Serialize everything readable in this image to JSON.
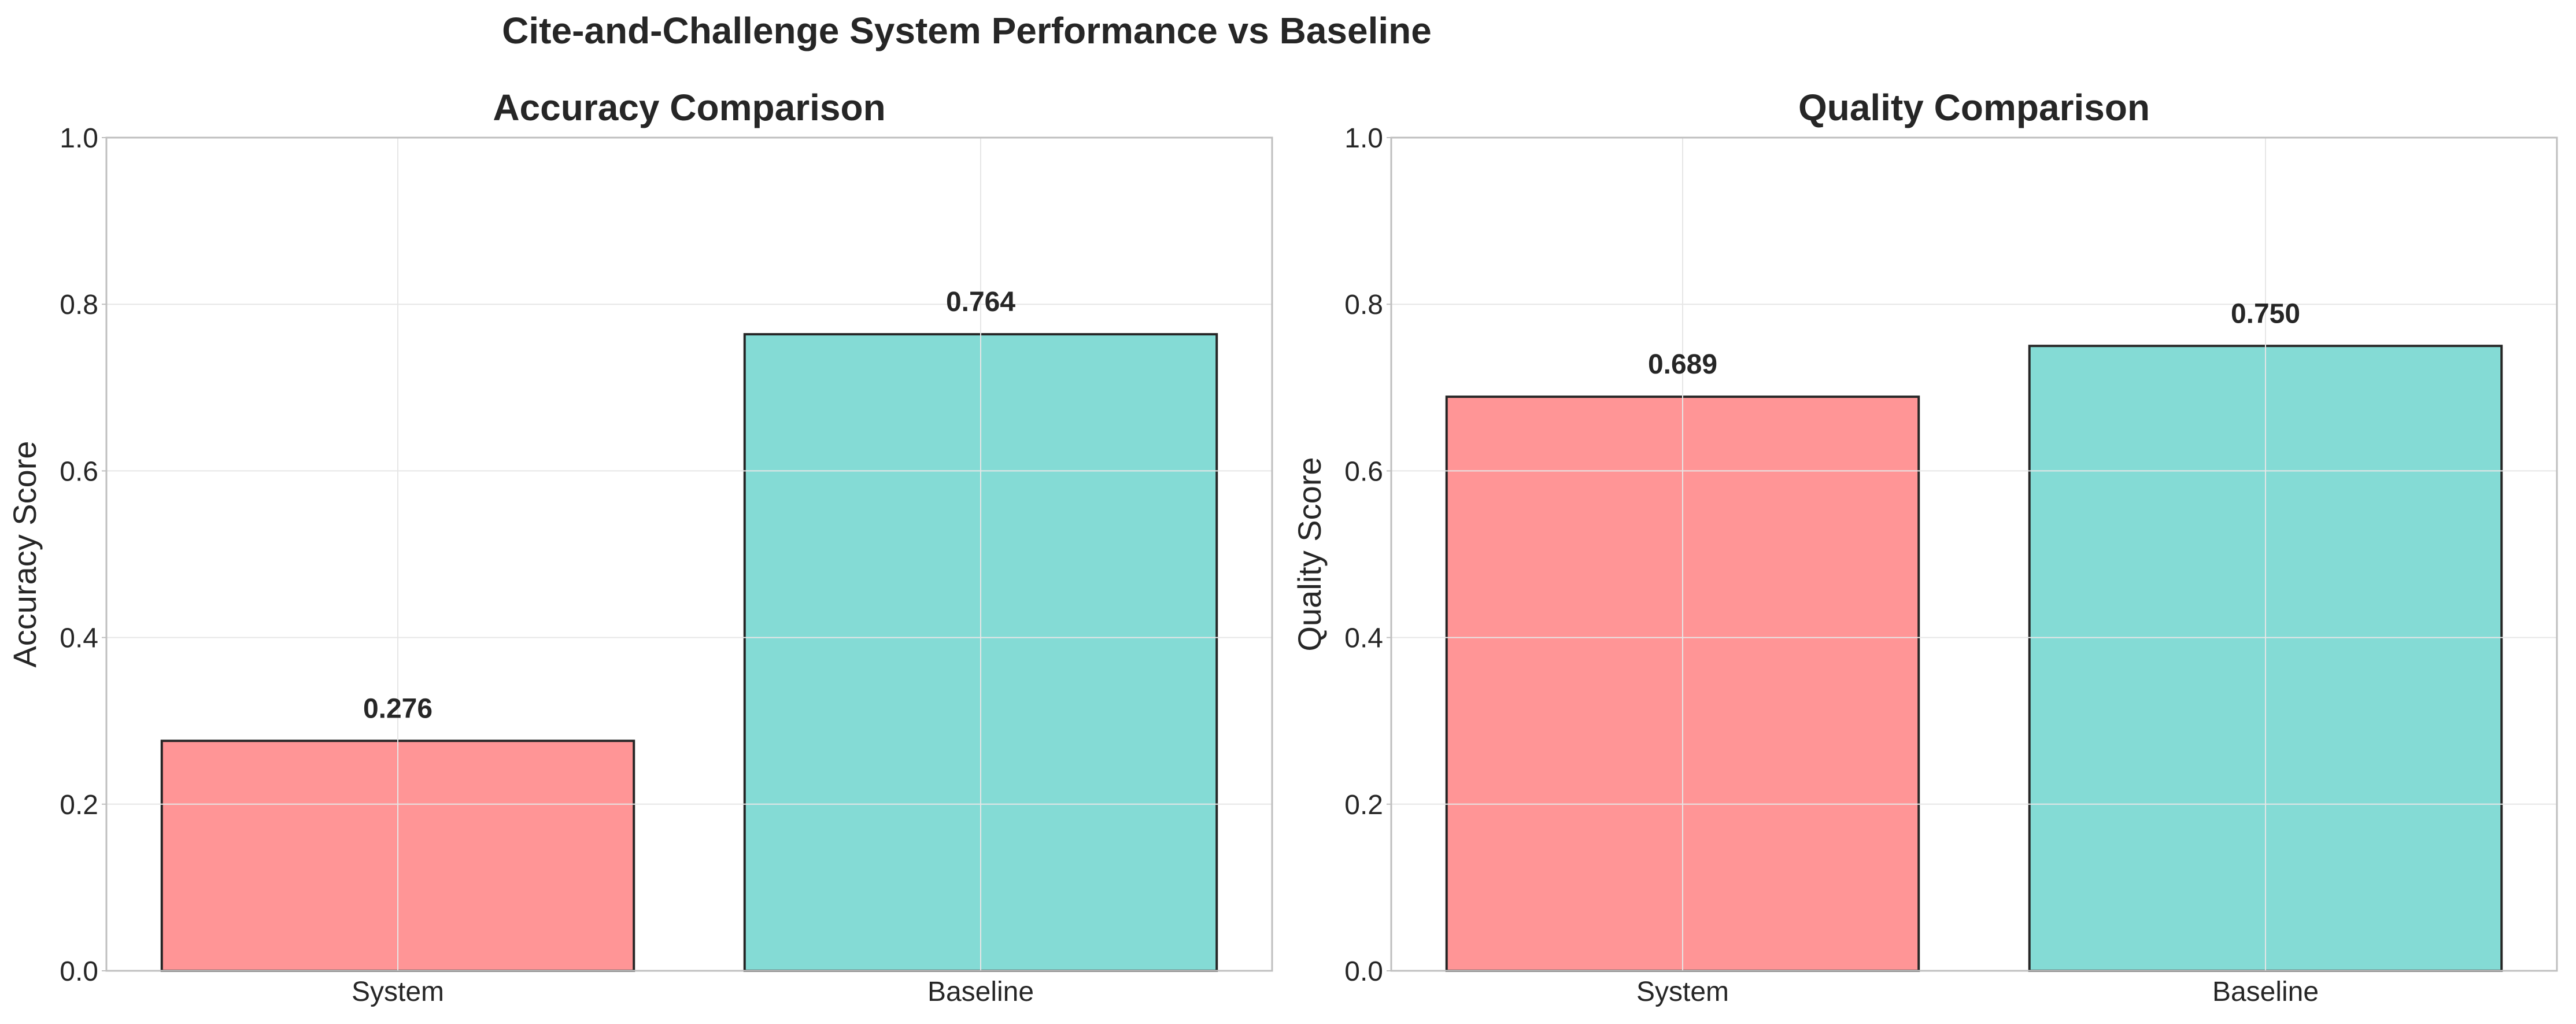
{
  "figure": {
    "suptitle": "Cite-and-Challenge System Performance vs Baseline"
  },
  "chart_data": [
    {
      "type": "bar",
      "title": "Accuracy Comparison",
      "xlabel": "",
      "ylabel": "Accuracy Score",
      "categories": [
        "System",
        "Baseline"
      ],
      "values": [
        0.276,
        0.764
      ],
      "value_labels": [
        "0.276",
        "0.764"
      ],
      "ylim": [
        0,
        1.0
      ],
      "yticks": [
        0.0,
        0.2,
        0.4,
        0.6,
        0.8,
        1.0
      ],
      "ytick_labels": [
        "0.0",
        "0.2",
        "0.4",
        "0.6",
        "0.8",
        "1.0"
      ],
      "colors": [
        "#ff9596",
        "#84dbd5"
      ],
      "grid": true,
      "legend": "none"
    },
    {
      "type": "bar",
      "title": "Quality Comparison",
      "xlabel": "",
      "ylabel": "Quality Score",
      "categories": [
        "System",
        "Baseline"
      ],
      "values": [
        0.689,
        0.75
      ],
      "value_labels": [
        "0.689",
        "0.750"
      ],
      "ylim": [
        0,
        1.0
      ],
      "yticks": [
        0.0,
        0.2,
        0.4,
        0.6,
        0.8,
        1.0
      ],
      "ytick_labels": [
        "0.0",
        "0.2",
        "0.4",
        "0.6",
        "0.8",
        "1.0"
      ],
      "colors": [
        "#ff9596",
        "#84dbd5"
      ],
      "grid": true,
      "legend": "none"
    }
  ]
}
